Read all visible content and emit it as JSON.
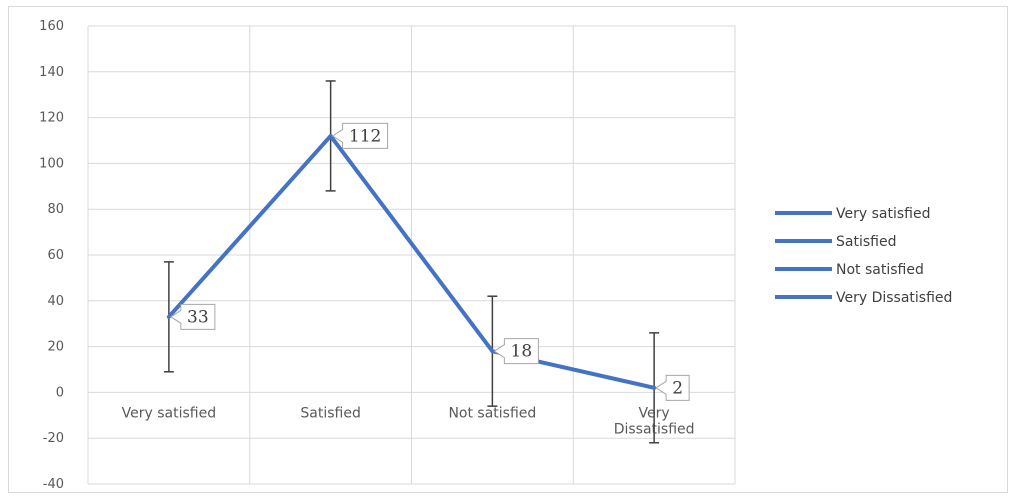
{
  "chart_data": {
    "type": "line",
    "categories": [
      "Very satisfied",
      "Satisfied",
      "Not satisfied",
      "Very Dissatisfied"
    ],
    "category_lines": [
      [
        "Very satisfied"
      ],
      [
        "Satisfied"
      ],
      [
        "Not satisfied"
      ],
      [
        "Very",
        "Dissatisfied"
      ]
    ],
    "values": [
      33,
      112,
      18,
      2
    ],
    "data_labels": [
      "33",
      "112",
      "18",
      "2"
    ],
    "error_bar": 24,
    "ylim": [
      -40,
      160
    ],
    "yticks": [
      -40,
      -20,
      0,
      20,
      40,
      60,
      80,
      100,
      120,
      140,
      160
    ],
    "ytick_labels": [
      "-40",
      "-20",
      "0",
      "20",
      "40",
      "60",
      "80",
      "100",
      "120",
      "140",
      "160"
    ],
    "grid": true,
    "legend": {
      "placement": "right",
      "entries": [
        "Very satisfied",
        "Satisfied",
        "Not satisfied",
        "Very Dissatisfied"
      ]
    },
    "line_color": "#4472c4",
    "error_bar_color": "#404040",
    "grid_color": "#d9d9d9"
  }
}
